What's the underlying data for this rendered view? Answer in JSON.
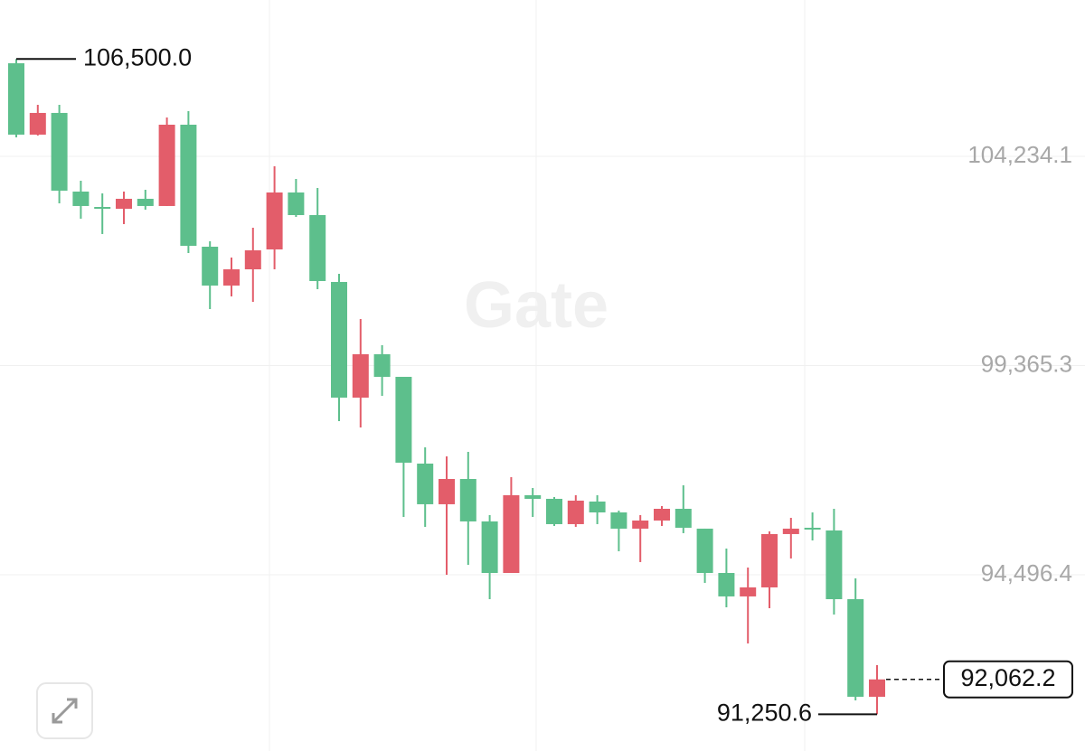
{
  "chart_data": {
    "type": "candlestick",
    "watermark": "Gate",
    "up_color": "#e35d6a",
    "down_color": "#5dbf8c",
    "ylim": [
      90396,
      107872
    ],
    "yticks": [
      {
        "value": 104234.1,
        "label": "104,234.1"
      },
      {
        "value": 99365.3,
        "label": "99,365.3"
      },
      {
        "value": 94496.4,
        "label": "94,496.4"
      }
    ],
    "grid": true,
    "open": [
      106400,
      104739,
      105244,
      103414,
      103056,
      103014,
      103246,
      103078,
      104970,
      102131,
      101227,
      101605,
      102068,
      103393,
      102867,
      101311,
      98619,
      99629,
      99103,
      97084,
      96138,
      96726,
      95738,
      94539,
      96348,
      96264,
      95675,
      96201,
      95948,
      95570,
      95759,
      96032,
      95570,
      94539,
      93993,
      94203,
      95444,
      95591,
      95528,
      93929,
      91658
    ],
    "high": [
      106500,
      105433,
      105433,
      103666,
      103372,
      103414,
      103456,
      105138,
      105286,
      102257,
      101879,
      102573,
      104003,
      103708,
      103498,
      101500,
      100449,
      99839,
      99103,
      97462,
      97252,
      97357,
      95885,
      96769,
      96516,
      96306,
      96348,
      96348,
      95990,
      95885,
      96096,
      96579,
      95570,
      95107,
      94666,
      95507,
      95822,
      95948,
      96032,
      94413,
      92394
    ],
    "low": [
      104676,
      104718,
      103141,
      102783,
      102426,
      102657,
      102993,
      103078,
      101984,
      100680,
      100975,
      100848,
      101605,
      102825,
      101143,
      98072,
      97925,
      98661,
      95843,
      95612,
      94497,
      94729,
      93929,
      94539,
      95843,
      95633,
      95612,
      95675,
      95044,
      94792,
      95633,
      95465,
      94308,
      93740,
      92899,
      93719,
      94876,
      95296,
      93572,
      91574,
      91250.6
    ],
    "close": [
      104739,
      105244,
      103435,
      103078,
      103014,
      103246,
      103078,
      104970,
      102152,
      101227,
      101605,
      102047,
      103393,
      102867,
      101332,
      98619,
      99629,
      99103,
      97105,
      96138,
      96726,
      95738,
      94539,
      96348,
      96264,
      95675,
      96222,
      95948,
      95570,
      95759,
      96032,
      95591,
      94539,
      93993,
      94203,
      95444,
      95570,
      95549,
      93929,
      91658,
      92062.2
    ],
    "annotations": [
      {
        "kind": "high",
        "value": 106500,
        "label": "106,500.0"
      },
      {
        "kind": "low",
        "value": 91250.6,
        "label": "91,250.6"
      },
      {
        "kind": "last",
        "value": 92062.2,
        "label": "92,062.2"
      }
    ]
  }
}
